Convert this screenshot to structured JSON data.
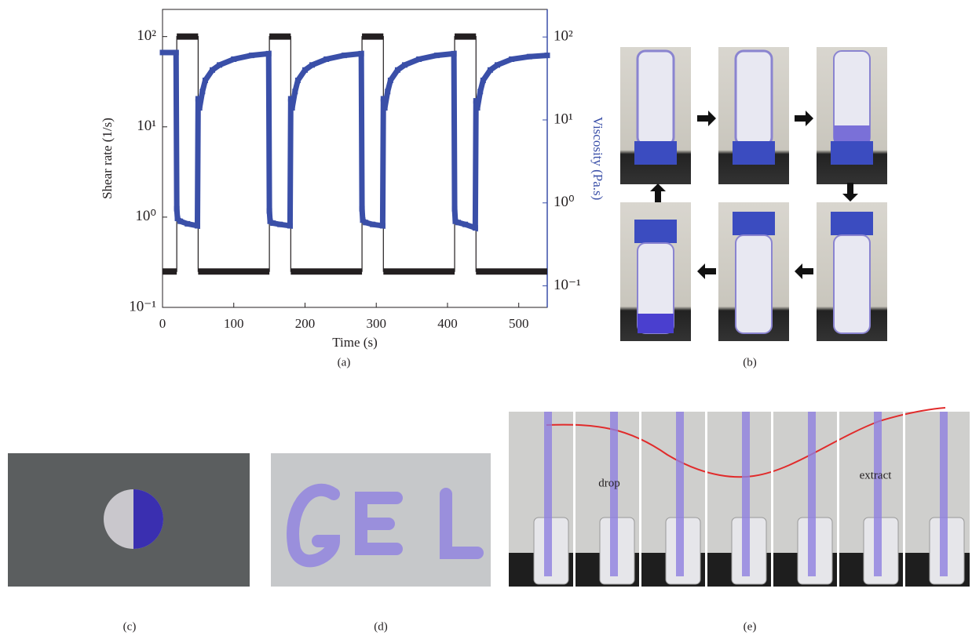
{
  "chart_data": {
    "type": "line",
    "x_label": "Time (s)",
    "y_label": "Shear rate (1/s)",
    "y2_label": "Viscosity (Pa.s)",
    "log_scale": true,
    "xlim": [
      0,
      540
    ],
    "xticks": [
      0,
      100,
      200,
      300,
      400,
      500
    ],
    "ylim": [
      0.1,
      200
    ],
    "yticks": [
      {
        "value": 0.1,
        "label": "10⁻¹"
      },
      {
        "value": 1,
        "label": "10⁰"
      },
      {
        "value": 10,
        "label": "10¹"
      },
      {
        "value": 100,
        "label": "10²"
      }
    ],
    "y2lim": [
      0.055,
      215
    ],
    "y2ticks": [
      {
        "value": 0.1,
        "label": "10⁻¹"
      },
      {
        "value": 1,
        "label": "10⁰"
      },
      {
        "value": 10,
        "label": "10¹"
      },
      {
        "value": 100,
        "label": "10²"
      }
    ],
    "series": [
      {
        "color": "#231f20",
        "x": [
          0,
          20,
          20,
          50,
          50,
          150,
          150,
          180,
          180,
          280,
          280,
          310,
          310,
          410,
          410,
          440,
          440,
          540
        ],
        "values": [
          0.25,
          0.25,
          100,
          100,
          0.25,
          0.25,
          100,
          100,
          0.25,
          0.25,
          100,
          100,
          0.25,
          0.25,
          100,
          100,
          0.25,
          0.25
        ]
      },
      {
        "color": "#3a4fa8",
        "axis": "y2",
        "x": [
          0,
          19,
          20,
          21,
          25,
          35,
          49,
          50,
          52,
          56,
          60,
          70,
          80,
          100,
          125,
          149,
          150,
          151,
          155,
          165,
          179,
          180,
          182,
          186,
          190,
          200,
          210,
          230,
          255,
          279,
          280,
          281,
          285,
          295,
          309,
          310,
          312,
          316,
          320,
          330,
          340,
          360,
          385,
          409,
          410,
          411,
          415,
          425,
          439,
          440,
          442,
          446,
          450,
          460,
          470,
          490,
          515,
          540
        ],
        "values": [
          65,
          65,
          0.85,
          0.65,
          0.6,
          0.56,
          0.53,
          18,
          14,
          22,
          30,
          40,
          46,
          54,
          60,
          63,
          0.8,
          0.6,
          0.57,
          0.55,
          0.53,
          18,
          14,
          22,
          30,
          40,
          46,
          54,
          60,
          63,
          0.85,
          0.62,
          0.58,
          0.55,
          0.53,
          18,
          14,
          22,
          30,
          40,
          46,
          54,
          60,
          63,
          0.85,
          0.6,
          0.58,
          0.55,
          0.5,
          17,
          14,
          22,
          30,
          40,
          46,
          54,
          58,
          60
        ]
      }
    ]
  },
  "panel_labels": [
    "(a)",
    "(b)",
    "(c)",
    "(d)",
    "(e)"
  ],
  "annotations": [
    "drop",
    "extract"
  ]
}
